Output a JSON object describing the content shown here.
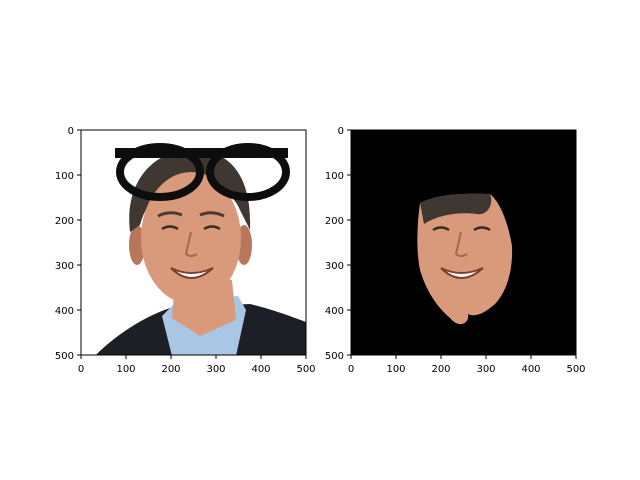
{
  "chart_data": [
    {
      "type": "image",
      "content": "photo of a smiling man in a dark jacket and light-blue shirt with cartoon black eyeglasses overlaid on the top of the image",
      "background": "#ffffff",
      "xlim": [
        0,
        500
      ],
      "ylim": [
        500,
        0
      ],
      "xticks": [
        0,
        100,
        200,
        300,
        400,
        500
      ],
      "yticks": [
        0,
        100,
        200,
        300,
        400,
        500
      ],
      "xtick_labels": [
        "0",
        "100",
        "200",
        "300",
        "400",
        "500"
      ],
      "ytick_labels": [
        "0",
        "100",
        "200",
        "300",
        "400",
        "500"
      ],
      "grid": false
    },
    {
      "type": "image",
      "content": "segmentation mask showing only the face region on a black background",
      "background": "#000000",
      "xlim": [
        0,
        500
      ],
      "ylim": [
        500,
        0
      ],
      "xticks": [
        0,
        100,
        200,
        300,
        400,
        500
      ],
      "yticks": [
        0,
        100,
        200,
        300,
        400,
        500
      ],
      "xtick_labels": [
        "0",
        "100",
        "200",
        "300",
        "400",
        "500"
      ],
      "ytick_labels": [
        "0",
        "100",
        "200",
        "300",
        "400",
        "500"
      ],
      "grid": false
    }
  ],
  "colors": {
    "skin": "#d99a7c",
    "skin_shadow": "#b8765a",
    "hair": "#3f3731",
    "jacket": "#1c1f26",
    "shirt": "#a9c6e4",
    "glasses": "#0d0d0d",
    "axis": "#000000"
  }
}
